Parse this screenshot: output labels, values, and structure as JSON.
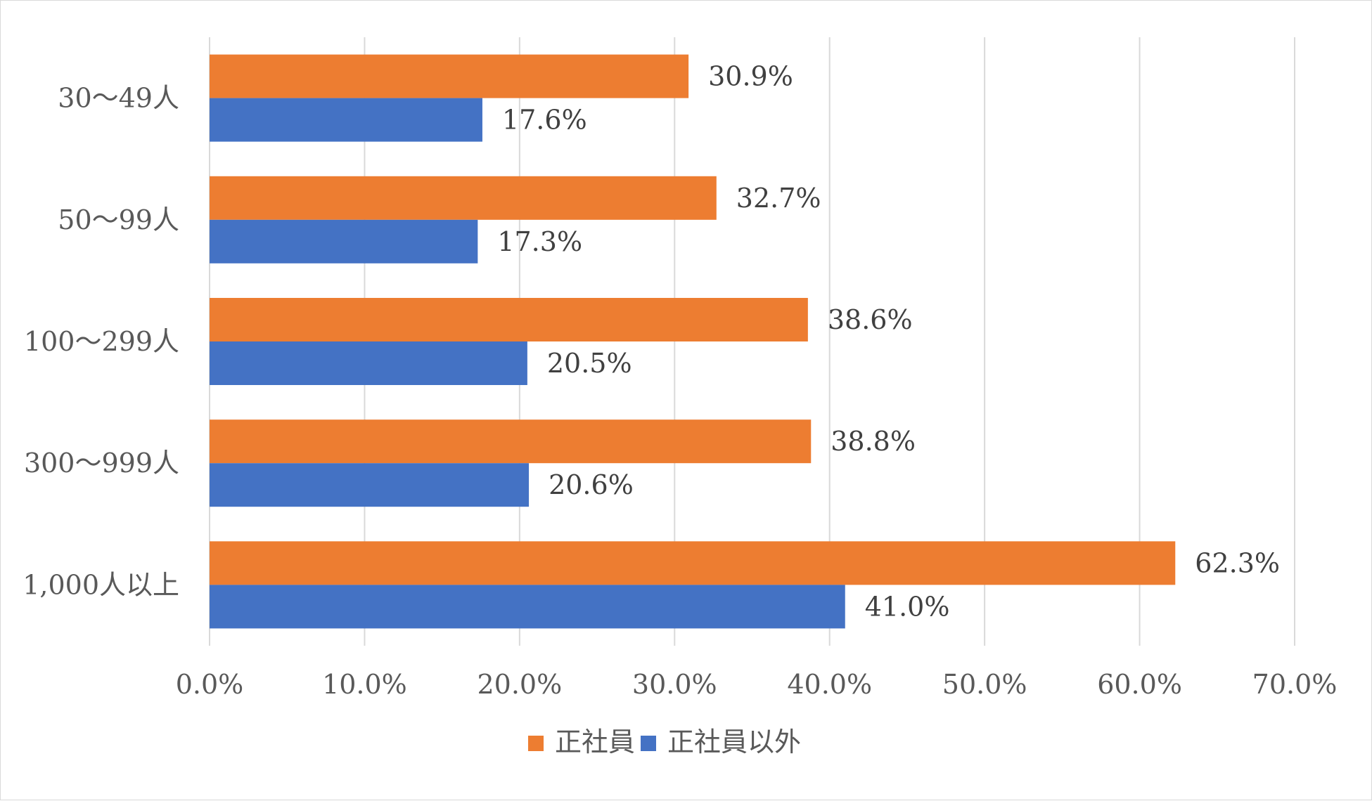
{
  "chart_data": {
    "type": "bar",
    "orientation": "horizontal",
    "title": "",
    "xlabel": "",
    "ylabel": "",
    "categories": [
      "30～49人",
      "50～99人",
      "100～299人",
      "300～999人",
      "1,000人以上"
    ],
    "series": [
      {
        "name": "正社員",
        "color": "#ed7d31",
        "values": [
          30.9,
          32.7,
          38.6,
          38.8,
          62.3
        ],
        "labels": [
          "30.9%",
          "32.7%",
          "38.6%",
          "38.8%",
          "62.3%"
        ]
      },
      {
        "name": "正社員以外",
        "color": "#4472c4",
        "values": [
          17.6,
          17.3,
          20.5,
          20.6,
          41.0
        ],
        "labels": [
          "17.6%",
          "17.3%",
          "20.5%",
          "20.6%",
          "41.0%"
        ]
      }
    ],
    "xlim": [
      0,
      70
    ],
    "x_ticks": [
      0,
      10,
      20,
      30,
      40,
      50,
      60,
      70
    ],
    "x_tick_labels": [
      "0.0%",
      "10.0%",
      "20.0%",
      "30.0%",
      "40.0%",
      "50.0%",
      "60.0%",
      "70.0%"
    ],
    "grid": true,
    "legend_position": "bottom"
  }
}
